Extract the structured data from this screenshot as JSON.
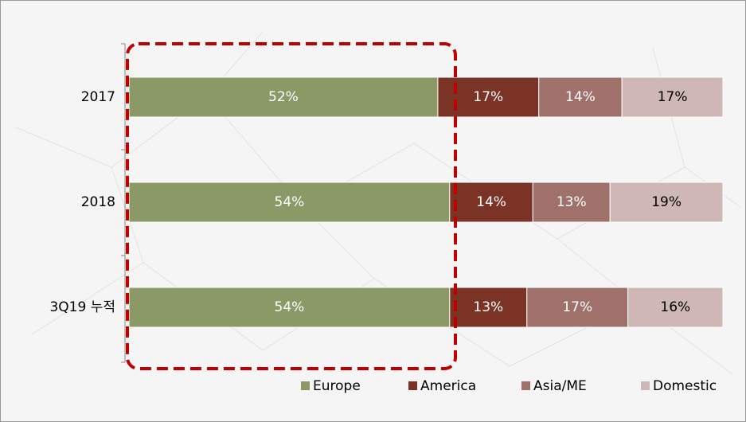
{
  "chart_data": {
    "type": "stacked_bar_horizontal",
    "categories": [
      "2017",
      "2018",
      "3Q19 누적"
    ],
    "xlim": [
      0,
      100
    ],
    "series": [
      {
        "name": "Europe",
        "color": "#8a9966",
        "label_color": "#ffffff",
        "values": [
          52,
          54,
          54
        ],
        "value_labels": [
          "52%",
          "54%",
          "54%"
        ]
      },
      {
        "name": "America",
        "color": "#7a3324",
        "label_color": "#ffffff",
        "values": [
          17,
          14,
          13
        ],
        "value_labels": [
          "17%",
          "14%",
          "13%"
        ]
      },
      {
        "name": "Asia/ME",
        "color": "#a0716b",
        "label_color": "#ffffff",
        "values": [
          14,
          13,
          17
        ],
        "value_labels": [
          "14%",
          "13%",
          "17%"
        ]
      },
      {
        "name": "Domestic",
        "color": "#cfb7b5",
        "label_color": "#000000",
        "values": [
          17,
          19,
          16
        ],
        "value_labels": [
          "17%",
          "19%",
          "16%"
        ]
      }
    ],
    "legend": "bottom-right"
  }
}
